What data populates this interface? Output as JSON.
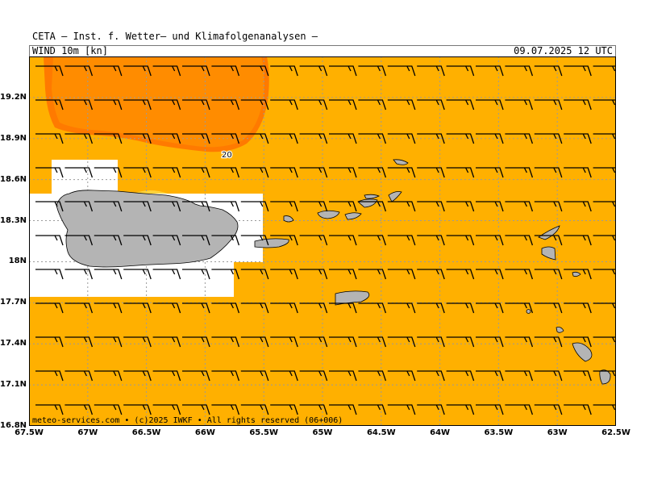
{
  "header": {
    "title": "CETA – Inst. f. Wetter– und Klimafolgenanalysen –",
    "field_label": "WIND 10m [kn]",
    "run_time": "09.07.2025 12 UTC"
  },
  "footer": {
    "copyright": "meteo-services.com • (c)2025 IWKF • All rights reserved (06+006)"
  },
  "colors": {
    "band_10_20": "#ffb000",
    "band_20_plus": "#ff8c00",
    "band_20_edge": "#ff7a00",
    "below_10": "#ffffff",
    "land": "#b4b4b4",
    "coastline": "#000000",
    "grid": "#9a9a9a",
    "barb": "#000000"
  },
  "map": {
    "lon_range": [
      -67.5,
      -62.5
    ],
    "lat_range": [
      16.8,
      19.5
    ],
    "contour_label": "20",
    "lat_labels": [
      "19.2N",
      "18.9N",
      "18.6N",
      "18.3N",
      "18N",
      "17.7N",
      "17.4N",
      "17.1N",
      "16.8N"
    ],
    "lon_labels": [
      "67.5W",
      "67W",
      "66.5W",
      "66W",
      "65.5W",
      "65W",
      "64.5W",
      "64W",
      "63.5W",
      "63W",
      "62.5W"
    ],
    "wind_direction": "east",
    "wind_speed_kn": 15,
    "calm_zones": [
      "west of Puerto Rico",
      "around Puerto Rico"
    ]
  }
}
